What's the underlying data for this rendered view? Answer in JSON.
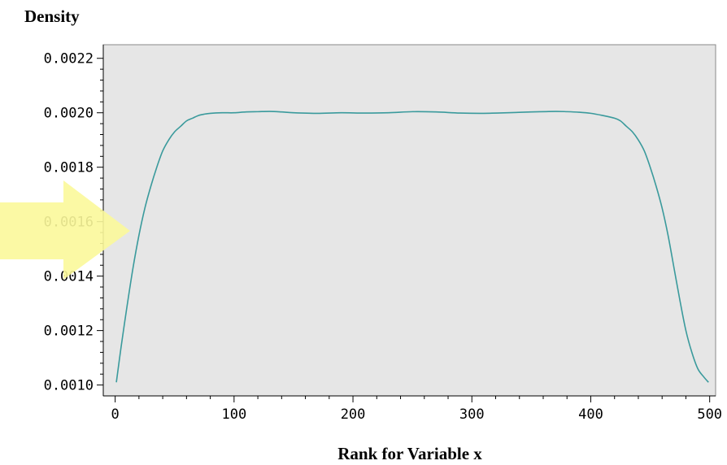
{
  "chart_data": {
    "type": "line",
    "title": "",
    "xlabel": "Rank for Variable x",
    "ylabel": "Density",
    "xlim": [
      -10,
      505
    ],
    "ylim": [
      0.00096,
      0.00225
    ],
    "x_ticks": [
      0,
      100,
      200,
      300,
      400,
      500
    ],
    "x_tick_labels": [
      "0",
      "100",
      "200",
      "300",
      "400",
      "500"
    ],
    "y_ticks": [
      0.001,
      0.0012,
      0.0014,
      0.0016,
      0.0018,
      0.002,
      0.0022
    ],
    "y_tick_labels": [
      "0.0010",
      "0.0012",
      "0.0014",
      "0.0016",
      "0.0018",
      "0.0020",
      "0.0022"
    ],
    "grid": false,
    "series": [
      {
        "color": "#3a9a9c",
        "x": [
          1,
          5,
          10,
          15,
          20,
          25,
          30,
          35,
          40,
          45,
          50,
          55,
          60,
          65,
          70,
          75,
          80,
          90,
          100,
          110,
          120,
          130,
          140,
          150,
          170,
          190,
          210,
          230,
          250,
          270,
          290,
          310,
          330,
          350,
          370,
          380,
          390,
          400,
          410,
          420,
          425,
          430,
          435,
          440,
          445,
          450,
          455,
          460,
          465,
          470,
          475,
          480,
          485,
          490,
          495,
          499
        ],
        "y": [
          0.00101,
          0.00114,
          0.00129,
          0.00143,
          0.00155,
          0.00165,
          0.00173,
          0.0018,
          0.00186,
          0.0019,
          0.00193,
          0.00195,
          0.00197,
          0.00198,
          0.00199,
          0.001995,
          0.001998,
          0.002,
          0.002,
          0.002003,
          0.002004,
          0.002005,
          0.002003,
          0.002,
          0.001998,
          0.002,
          0.001999,
          0.002,
          0.002004,
          0.002003,
          0.001999,
          0.001998,
          0.002,
          0.002003,
          0.002005,
          0.002004,
          0.002002,
          0.001998,
          0.00199,
          0.00198,
          0.00197,
          0.00195,
          0.00193,
          0.0019,
          0.00186,
          0.0018,
          0.00173,
          0.00165,
          0.00155,
          0.00143,
          0.00131,
          0.0012,
          0.00112,
          0.00106,
          0.00103,
          0.00101
        ]
      }
    ]
  },
  "colors": {
    "plot_background": "#e6e6e6",
    "line": "#3a9a9c",
    "highlight_arrow": "#fbf89a"
  },
  "overlay": {
    "arrow_icon": "arrow-right-icon"
  }
}
